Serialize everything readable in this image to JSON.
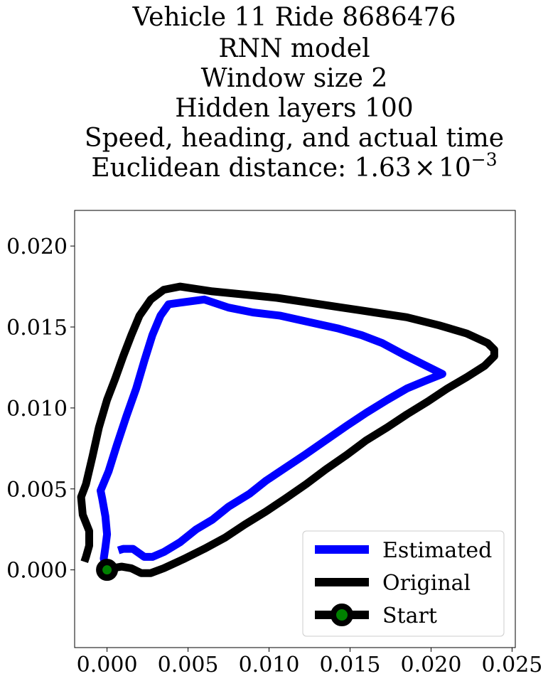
{
  "chart_data": {
    "type": "line",
    "title_lines": [
      "Vehicle 11 Ride 8686476",
      "RNN model",
      "Window size 2",
      "Hidden layers 100",
      "Speed, heading, and actual time"
    ],
    "title_metric_label": "Euclidean distance: ",
    "title_metric_mantissa": "1.63",
    "title_metric_times": "×",
    "title_metric_base": "10",
    "title_metric_exponent": "−3",
    "xlabel": "",
    "ylabel": "",
    "xlim": [
      -0.002,
      0.0252
    ],
    "ylim": [
      -0.0048,
      0.0222
    ],
    "xticks": [
      0.0,
      0.005,
      0.01,
      0.015,
      0.02,
      0.025
    ],
    "xtick_labels": [
      "0.000",
      "0.005",
      "0.010",
      "0.015",
      "0.020",
      "0.025"
    ],
    "yticks": [
      0.0,
      0.005,
      0.01,
      0.015,
      0.02
    ],
    "ytick_labels": [
      "0.000",
      "0.005",
      "0.010",
      "0.015",
      "0.020"
    ],
    "grid": false,
    "legend_position": "lower-right",
    "series": [
      {
        "name": "Estimated",
        "color": "#0000ff",
        "points": [
          [
            0.0007,
            0.0012
          ],
          [
            0.001,
            0.0013
          ],
          [
            0.0016,
            0.0013
          ],
          [
            0.0023,
            0.0008
          ],
          [
            0.0028,
            0.0008
          ],
          [
            0.0035,
            0.0011
          ],
          [
            0.0045,
            0.0017
          ],
          [
            0.0055,
            0.0025
          ],
          [
            0.0065,
            0.0031
          ],
          [
            0.0075,
            0.0039
          ],
          [
            0.0088,
            0.0047
          ],
          [
            0.0098,
            0.0055
          ],
          [
            0.011,
            0.0063
          ],
          [
            0.0122,
            0.0071
          ],
          [
            0.0135,
            0.008
          ],
          [
            0.0148,
            0.0089
          ],
          [
            0.016,
            0.0097
          ],
          [
            0.0173,
            0.0105
          ],
          [
            0.0185,
            0.0112
          ],
          [
            0.0197,
            0.0117
          ],
          [
            0.0207,
            0.0121
          ],
          [
            0.0197,
            0.0126
          ],
          [
            0.0183,
            0.0133
          ],
          [
            0.017,
            0.014
          ],
          [
            0.0157,
            0.0145
          ],
          [
            0.0143,
            0.0149
          ],
          [
            0.0125,
            0.0153
          ],
          [
            0.0107,
            0.0157
          ],
          [
            0.009,
            0.0159
          ],
          [
            0.0075,
            0.0162
          ],
          [
            0.006,
            0.0167
          ],
          [
            0.0045,
            0.0165
          ],
          [
            0.0038,
            0.0164
          ],
          [
            0.0033,
            0.0157
          ],
          [
            0.0028,
            0.0145
          ],
          [
            0.0023,
            0.0129
          ],
          [
            0.0018,
            0.0112
          ],
          [
            0.0012,
            0.0095
          ],
          [
            0.0006,
            0.0077
          ],
          [
            0.0001,
            0.0061
          ],
          [
            -0.0004,
            0.0049
          ],
          [
            -0.0003,
            0.0044
          ],
          [
            -0.0001,
            0.0033
          ],
          [
            0.0,
            0.0022
          ],
          [
            -0.0001,
            0.0014
          ],
          [
            -0.0002,
            0.0007
          ],
          [
            -0.0001,
            0.0002
          ]
        ]
      },
      {
        "name": "Original",
        "color": "#000000",
        "points": [
          [
            0.0,
            0.0
          ],
          [
            0.0003,
            0.0001
          ],
          [
            0.0009,
            0.0002
          ],
          [
            0.0015,
            0.0001
          ],
          [
            0.0021,
            -0.0002
          ],
          [
            0.0027,
            -0.0002
          ],
          [
            0.0035,
            0.0001
          ],
          [
            0.0048,
            0.0007
          ],
          [
            0.006,
            0.0013
          ],
          [
            0.0073,
            0.002
          ],
          [
            0.0085,
            0.0028
          ],
          [
            0.0098,
            0.0036
          ],
          [
            0.011,
            0.0044
          ],
          [
            0.0123,
            0.0053
          ],
          [
            0.0135,
            0.0062
          ],
          [
            0.0148,
            0.0071
          ],
          [
            0.016,
            0.008
          ],
          [
            0.0173,
            0.0088
          ],
          [
            0.0185,
            0.0096
          ],
          [
            0.0198,
            0.0104
          ],
          [
            0.021,
            0.0112
          ],
          [
            0.0222,
            0.0119
          ],
          [
            0.0233,
            0.0126
          ],
          [
            0.0239,
            0.0132
          ],
          [
            0.0239,
            0.0136
          ],
          [
            0.0235,
            0.014
          ],
          [
            0.0222,
            0.0146
          ],
          [
            0.0205,
            0.0151
          ],
          [
            0.0185,
            0.0156
          ],
          [
            0.0165,
            0.0159
          ],
          [
            0.0145,
            0.0162
          ],
          [
            0.0125,
            0.0165
          ],
          [
            0.0105,
            0.0168
          ],
          [
            0.0085,
            0.017
          ],
          [
            0.0065,
            0.0172
          ],
          [
            0.0045,
            0.0175
          ],
          [
            0.0035,
            0.0173
          ],
          [
            0.0027,
            0.0167
          ],
          [
            0.002,
            0.0157
          ],
          [
            0.0015,
            0.0145
          ],
          [
            0.001,
            0.0132
          ],
          [
            0.0005,
            0.0118
          ],
          [
            0.0,
            0.0105
          ],
          [
            -0.0005,
            0.0088
          ],
          [
            -0.0009,
            0.007
          ],
          [
            -0.0013,
            0.0053
          ],
          [
            -0.0016,
            0.0045
          ],
          [
            -0.0015,
            0.0034
          ],
          [
            -0.0011,
            0.0024
          ],
          [
            -0.0011,
            0.0015
          ],
          [
            -0.0013,
            0.0008
          ],
          [
            -0.0014,
            0.0005
          ]
        ]
      }
    ],
    "start": {
      "name": "Start",
      "point": [
        0.0,
        0.0
      ],
      "marker_fill": "#008000",
      "marker_edge": "#000000"
    }
  }
}
